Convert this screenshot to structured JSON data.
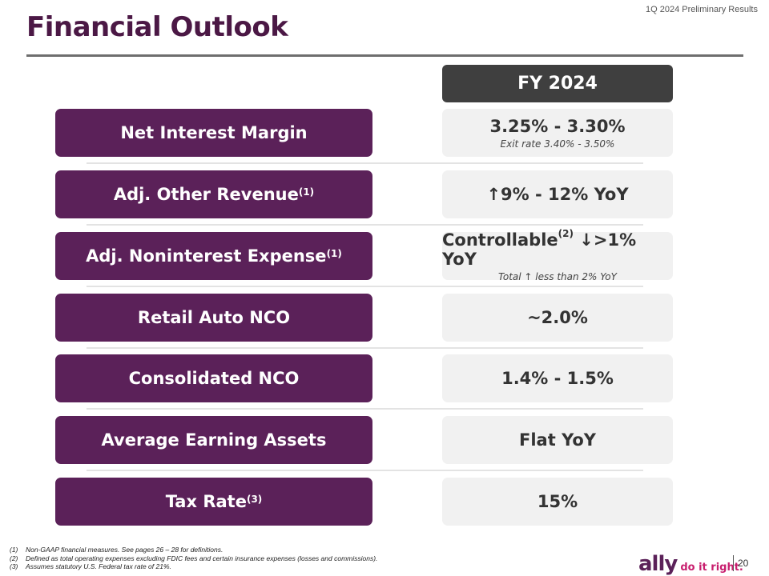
{
  "header_note": "1Q 2024 Preliminary Results",
  "title": "Financial Outlook",
  "column_header": "FY 2024",
  "rows": [
    {
      "label": "Net Interest Margin",
      "label_sup": "",
      "value": "3.25% - 3.30%",
      "value_sup": "",
      "value_suffix": "",
      "sub": "Exit rate 3.40% - 3.50%"
    },
    {
      "label": "Adj. Other Revenue",
      "label_sup": "(1)",
      "value": "↑9% - 12% YoY",
      "value_sup": "",
      "value_suffix": "",
      "sub": ""
    },
    {
      "label": "Adj. Noninterest Expense",
      "label_sup": "(1)",
      "value": "Controllable",
      "value_sup": "(2)",
      "value_suffix": " ↓>1% YoY",
      "sub": "Total ↑ less than 2% YoY"
    },
    {
      "label": "Retail Auto NCO",
      "label_sup": "",
      "value": "~2.0%",
      "value_sup": "",
      "value_suffix": "",
      "sub": ""
    },
    {
      "label": "Consolidated NCO",
      "label_sup": "",
      "value": "1.4% - 1.5%",
      "value_sup": "",
      "value_suffix": "",
      "sub": ""
    },
    {
      "label": "Average Earning Assets",
      "label_sup": "",
      "value": "Flat YoY",
      "value_sup": "",
      "value_suffix": "",
      "sub": ""
    },
    {
      "label": "Tax Rate",
      "label_sup": "(3)",
      "value": "15%",
      "value_sup": "",
      "value_suffix": "",
      "sub": ""
    }
  ],
  "footnotes": [
    {
      "num": "(1)",
      "text": "Non-GAAP financial measures. See pages 26 – 28 for definitions."
    },
    {
      "num": "(2)",
      "text": "Defined as total operating expenses excluding FDIC fees and certain insurance expenses (losses and commissions)."
    },
    {
      "num": "(3)",
      "text": "Assumes statutory U.S. Federal tax rate of 21%."
    }
  ],
  "brand": {
    "name": "ally",
    "tagline": "do it right."
  },
  "page_number": "20",
  "colors": {
    "label_bg": "#5b2159",
    "header_bg": "#3f3f3f",
    "value_bg": "#f1f1f1",
    "title": "#4b1845",
    "tagline": "#c81e6e"
  }
}
